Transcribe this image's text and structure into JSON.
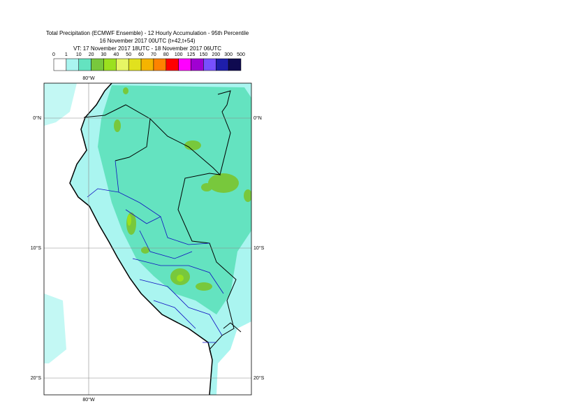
{
  "header": {
    "title": "Total Precipitation (ECMWF Ensemble) - 12 Hourly Accumulation - 95th Percentile",
    "base_time": "16 November 2017 00UTC (t+42,t+54)",
    "valid_time": "VT: 17 November 2017 18UTC - 18 November 2017 06UTC"
  },
  "legend": {
    "labels": [
      "0",
      "1",
      "10",
      "20",
      "30",
      "40",
      "50",
      "60",
      "70",
      "80",
      "100",
      "125",
      "150",
      "200",
      "300",
      "500"
    ],
    "colors": [
      "#ffffff",
      "#aaf5f0",
      "#64e3c0",
      "#78c83c",
      "#9be01e",
      "#e6f564",
      "#e1e11e",
      "#f5b400",
      "#ff8200",
      "#ff0000",
      "#ff00ff",
      "#a000d2",
      "#7850ff",
      "#1e1eaa",
      "#0f0a50"
    ]
  },
  "map": {
    "lon_label": "80°W",
    "lat_labels": [
      "0°N",
      "10°S",
      "20°S"
    ]
  }
}
